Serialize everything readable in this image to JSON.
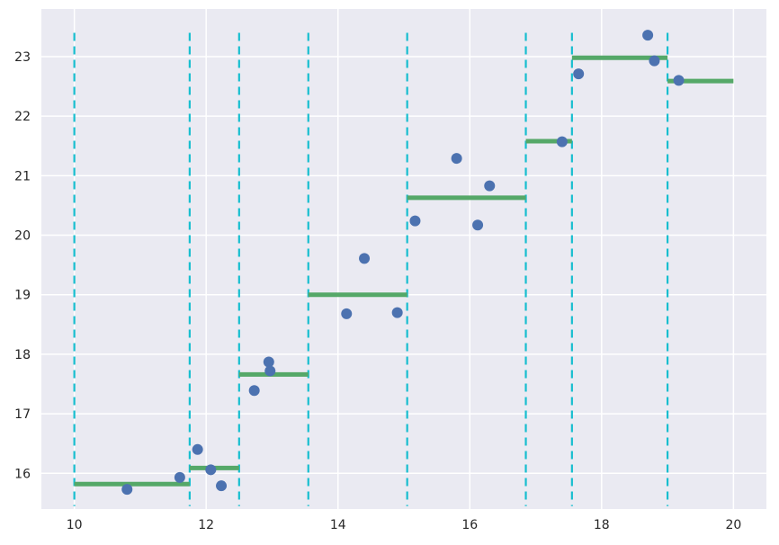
{
  "chart_data": {
    "type": "scatter",
    "title": "",
    "xlabel": "",
    "ylabel": "",
    "xlim": [
      9.5,
      20.5
    ],
    "ylim": [
      15.4,
      23.8
    ],
    "x_ticks": [
      10,
      12,
      14,
      16,
      18,
      20
    ],
    "y_ticks": [
      16,
      17,
      18,
      19,
      20,
      21,
      22,
      23
    ],
    "grid": true,
    "background": "#eaeaf2",
    "colors": {
      "points": "#4c72b0",
      "steps": "#55a868",
      "boundaries": "#17becf"
    },
    "series": [
      {
        "kind": "points",
        "x": [
          10.8,
          11.6,
          11.87,
          12.07,
          12.23,
          12.73,
          12.95,
          12.97,
          14.13,
          14.4,
          14.9,
          15.17,
          15.8,
          16.12,
          16.3,
          17.4,
          17.65,
          18.7,
          18.8,
          19.17
        ],
        "y": [
          15.73,
          15.93,
          16.4,
          16.06,
          15.79,
          17.39,
          17.87,
          17.72,
          18.68,
          19.61,
          18.7,
          20.24,
          21.29,
          20.17,
          20.83,
          21.57,
          22.71,
          23.36,
          22.93,
          22.6
        ]
      },
      {
        "kind": "steps",
        "segments": [
          {
            "x0": 10.0,
            "x1": 11.75,
            "y": 15.82
          },
          {
            "x0": 11.75,
            "x1": 12.5,
            "y": 16.09
          },
          {
            "x0": 12.5,
            "x1": 13.55,
            "y": 17.66
          },
          {
            "x0": 13.55,
            "x1": 15.05,
            "y": 19.0
          },
          {
            "x0": 15.05,
            "x1": 16.85,
            "y": 20.63
          },
          {
            "x0": 16.85,
            "x1": 17.55,
            "y": 21.58
          },
          {
            "x0": 17.55,
            "x1": 19.0,
            "y": 22.98
          },
          {
            "x0": 19.0,
            "x1": 20.0,
            "y": 22.59
          }
        ]
      },
      {
        "kind": "boundaries",
        "x": [
          10.0,
          11.75,
          12.5,
          13.55,
          15.05,
          16.85,
          17.55,
          19.0
        ],
        "y_range": [
          15.45,
          23.4
        ]
      }
    ]
  }
}
